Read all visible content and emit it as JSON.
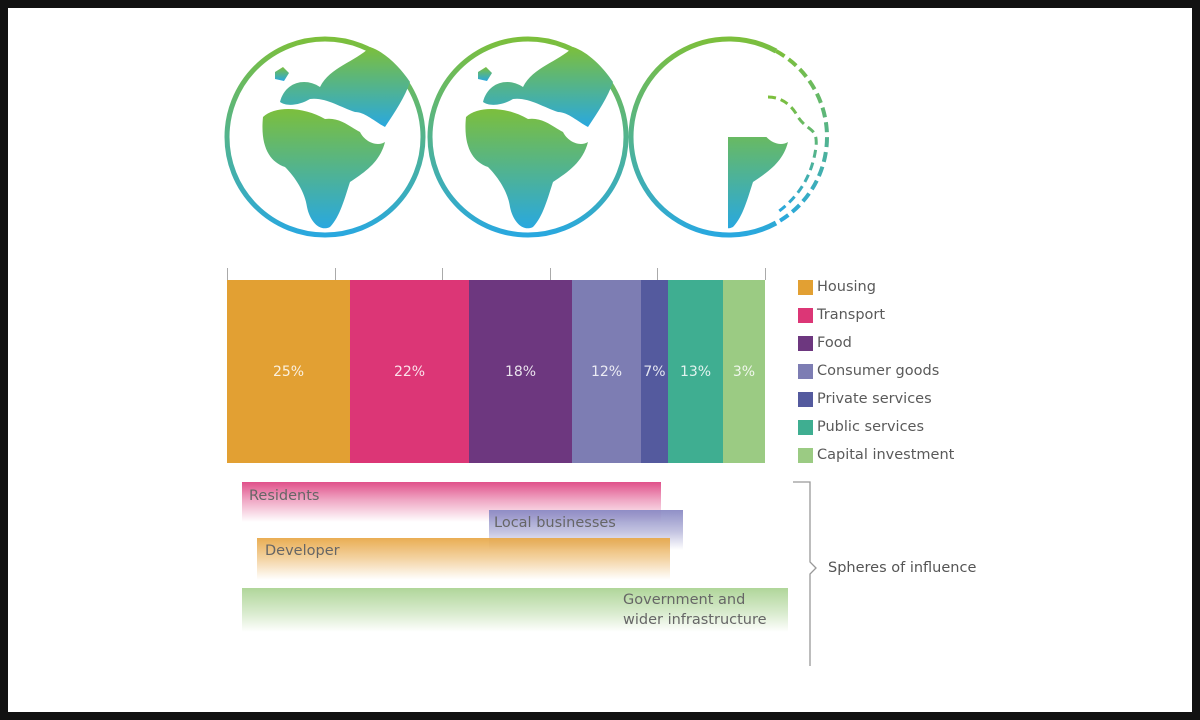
{
  "chart_data": {
    "type": "bar",
    "orientation": "horizontal-stacked-100",
    "categories": [
      "Housing",
      "Transport",
      "Food",
      "Consumer goods",
      "Private services",
      "Public services",
      "Capital investment"
    ],
    "values": [
      25,
      22,
      18,
      12,
      7,
      13,
      3
    ],
    "labels": [
      "25%",
      "22%",
      "18%",
      "12%",
      "7%",
      "13%",
      "3%"
    ],
    "colors": [
      "#e2a033",
      "#dc3676",
      "#6d377f",
      "#7d7db3",
      "#545a9e",
      "#3fae91",
      "#9bcb83"
    ],
    "legend_position": "right",
    "grid": false
  },
  "globes": {
    "count": 3,
    "gradient": [
      "#7cbf3c",
      "#29a8df"
    ],
    "third_partial": true
  },
  "spheres": {
    "title": "Spheres of influence",
    "items": [
      {
        "label": "Residents",
        "color": "#e0508a"
      },
      {
        "label": "Local businesses",
        "color": "#8a8ac4"
      },
      {
        "label": "Developer",
        "color": "#e8a94a"
      },
      {
        "label_line1": "Government and",
        "label_line2": "wider infrastructure",
        "color": "#9fcc86"
      }
    ]
  }
}
